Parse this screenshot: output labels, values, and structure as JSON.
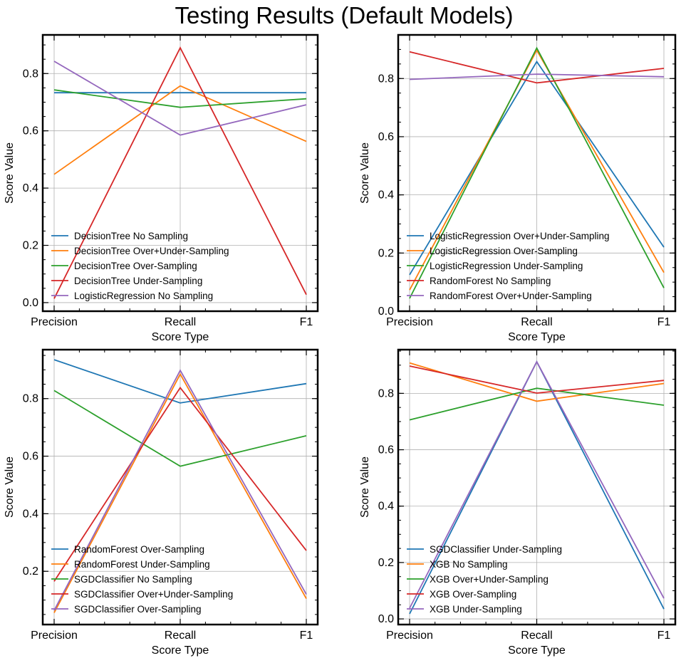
{
  "title": "Testing Results (Default Models)",
  "chart_data": [
    {
      "type": "line",
      "categories": [
        "Precision",
        "Recall",
        "F1"
      ],
      "xlabel": "Score Type",
      "ylabel": "Score Value",
      "ylim": [
        -0.03,
        0.935
      ],
      "yticks": [
        0.0,
        0.2,
        0.4,
        0.6,
        0.8
      ],
      "ytick_labels": [
        "0.0",
        "0.2",
        "0.4",
        "0.6",
        "0.8"
      ],
      "legend_position": "lower-left",
      "grid": true,
      "series": [
        {
          "name": "DecisionTree No Sampling",
          "color": "#1f77b4",
          "values": [
            0.733,
            0.733,
            0.733
          ]
        },
        {
          "name": "DecisionTree Over+Under-Sampling",
          "color": "#ff7f0e",
          "values": [
            0.448,
            0.757,
            0.563
          ]
        },
        {
          "name": "DecisionTree Over-Sampling",
          "color": "#2ca02c",
          "values": [
            0.743,
            0.682,
            0.712
          ]
        },
        {
          "name": "DecisionTree Under-Sampling",
          "color": "#d62728",
          "values": [
            0.014,
            0.89,
            0.028
          ]
        },
        {
          "name": "LogisticRegression No Sampling",
          "color": "#9467bd",
          "values": [
            0.843,
            0.585,
            0.691
          ]
        }
      ]
    },
    {
      "type": "line",
      "categories": [
        "Precision",
        "Recall",
        "F1"
      ],
      "xlabel": "Score Type",
      "ylabel": "Score Value",
      "ylim": [
        0.0,
        0.95
      ],
      "yticks": [
        0.0,
        0.2,
        0.4,
        0.6,
        0.8
      ],
      "ytick_labels": [
        "0.0",
        "0.2",
        "0.4",
        "0.6",
        "0.8"
      ],
      "legend_position": "lower-left",
      "grid": true,
      "series": [
        {
          "name": "LogisticRegression Over+Under-Sampling",
          "color": "#1f77b4",
          "values": [
            0.125,
            0.858,
            0.22
          ]
        },
        {
          "name": "LogisticRegression Over-Sampling",
          "color": "#ff7f0e",
          "values": [
            0.073,
            0.897,
            0.133
          ]
        },
        {
          "name": "LogisticRegression Under-Sampling",
          "color": "#2ca02c",
          "values": [
            0.044,
            0.905,
            0.08
          ]
        },
        {
          "name": "RandomForest No Sampling",
          "color": "#d62728",
          "values": [
            0.892,
            0.785,
            0.835
          ]
        },
        {
          "name": "RandomForest Over+Under-Sampling",
          "color": "#9467bd",
          "values": [
            0.797,
            0.815,
            0.806
          ]
        }
      ]
    },
    {
      "type": "line",
      "categories": [
        "Precision",
        "Recall",
        "F1"
      ],
      "xlabel": "Score Type",
      "ylabel": "Score Value",
      "ylim": [
        0.015,
        0.97
      ],
      "yticks": [
        0.2,
        0.4,
        0.6,
        0.8
      ],
      "ytick_labels": [
        "0.2",
        "0.4",
        "0.6",
        "0.8"
      ],
      "legend_position": "lower-left",
      "grid": true,
      "series": [
        {
          "name": "RandomForest Over-Sampling",
          "color": "#1f77b4",
          "values": [
            0.935,
            0.785,
            0.852
          ]
        },
        {
          "name": "RandomForest Under-Sampling",
          "color": "#ff7f0e",
          "values": [
            0.056,
            0.885,
            0.105
          ]
        },
        {
          "name": "SGDClassifier No Sampling",
          "color": "#2ca02c",
          "values": [
            0.828,
            0.565,
            0.671
          ]
        },
        {
          "name": "SGDClassifier Over+Under-Sampling",
          "color": "#d62728",
          "values": [
            0.165,
            0.838,
            0.272
          ]
        },
        {
          "name": "SGDClassifier Over-Sampling",
          "color": "#9467bd",
          "values": [
            0.064,
            0.898,
            0.12
          ]
        }
      ]
    },
    {
      "type": "line",
      "categories": [
        "Precision",
        "Recall",
        "F1"
      ],
      "xlabel": "Score Type",
      "ylabel": "Score Value",
      "ylim": [
        -0.02,
        0.955
      ],
      "yticks": [
        0.0,
        0.2,
        0.4,
        0.6,
        0.8
      ],
      "ytick_labels": [
        "0.0",
        "0.2",
        "0.4",
        "0.6",
        "0.8"
      ],
      "legend_position": "lower-left",
      "grid": true,
      "series": [
        {
          "name": "SGDClassifier Under-Sampling",
          "color": "#1f77b4",
          "values": [
            0.018,
            0.912,
            0.035
          ]
        },
        {
          "name": "XGB No Sampling",
          "color": "#ff7f0e",
          "values": [
            0.908,
            0.772,
            0.835
          ]
        },
        {
          "name": "XGB Over+Under-Sampling",
          "color": "#2ca02c",
          "values": [
            0.706,
            0.818,
            0.758
          ]
        },
        {
          "name": "XGB Over-Sampling",
          "color": "#d62728",
          "values": [
            0.897,
            0.801,
            0.846
          ]
        },
        {
          "name": "XGB Under-Sampling",
          "color": "#9467bd",
          "values": [
            0.038,
            0.912,
            0.073
          ]
        }
      ]
    }
  ]
}
